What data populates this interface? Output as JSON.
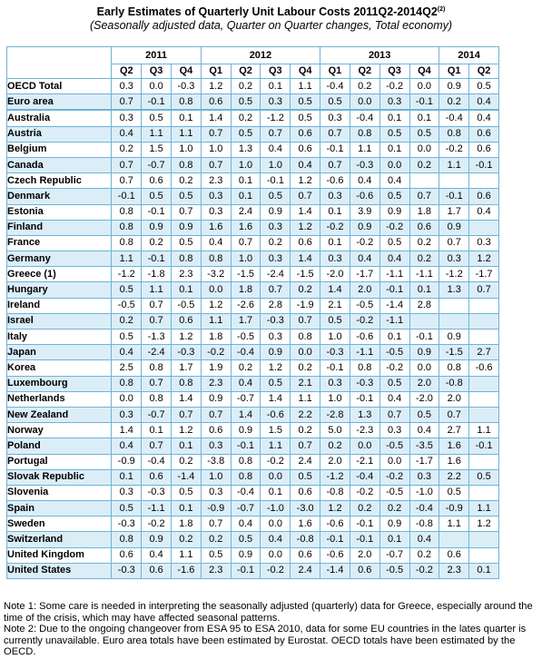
{
  "title": "Early Estimates of Quarterly Unit Labour Costs 2011Q2-2014Q2",
  "title_superscript": "(2)",
  "subtitle": "(Seasonally adjusted data, Quarter on Quarter changes, Total economy)",
  "years": [
    "2011",
    "2012",
    "2013",
    "2014"
  ],
  "quarters": [
    "Q2",
    "Q3",
    "Q4",
    "Q1",
    "Q2",
    "Q3",
    "Q4",
    "Q1",
    "Q2",
    "Q3",
    "Q4",
    "Q1",
    "Q2"
  ],
  "rows": [
    {
      "name": "OECD Total",
      "values": [
        "0.3",
        "0.0",
        "-0.3",
        "1.2",
        "0.2",
        "0.1",
        "1.1",
        "-0.4",
        "0.2",
        "-0.2",
        "0.0",
        "0.9",
        "0.5"
      ]
    },
    {
      "name": "Euro area",
      "values": [
        "0.7",
        "-0.1",
        "0.8",
        "0.6",
        "0.5",
        "0.3",
        "0.5",
        "0.5",
        "0.0",
        "0.3",
        "-0.1",
        "0.2",
        "0.4"
      ]
    },
    {
      "name": "Australia",
      "values": [
        "0.3",
        "0.5",
        "0.1",
        "1.4",
        "0.2",
        "-1.2",
        "0.5",
        "0.3",
        "-0.4",
        "0.1",
        "0.1",
        "-0.4",
        "0.4"
      ]
    },
    {
      "name": "Austria",
      "values": [
        "0.4",
        "1.1",
        "1.1",
        "0.7",
        "0.5",
        "0.7",
        "0.6",
        "0.7",
        "0.8",
        "0.5",
        "0.5",
        "0.8",
        "0.6"
      ]
    },
    {
      "name": "Belgium",
      "values": [
        "0.2",
        "1.5",
        "1.0",
        "1.0",
        "1.3",
        "0.4",
        "0.6",
        "-0.1",
        "1.1",
        "0.1",
        "0.0",
        "-0.2",
        "0.6"
      ]
    },
    {
      "name": "Canada",
      "values": [
        "0.7",
        "-0.7",
        "0.8",
        "0.7",
        "1.0",
        "1.0",
        "0.4",
        "0.7",
        "-0.3",
        "0.0",
        "0.2",
        "1.1",
        "-0.1"
      ]
    },
    {
      "name": "Czech Republic",
      "values": [
        "0.7",
        "0.6",
        "0.2",
        "2.3",
        "0.1",
        "-0.1",
        "1.2",
        "-0.6",
        "0.4",
        "0.4",
        "",
        "",
        ""
      ]
    },
    {
      "name": "Denmark",
      "values": [
        "-0.1",
        "0.5",
        "0.5",
        "0.3",
        "0.1",
        "0.5",
        "0.7",
        "0.3",
        "-0.6",
        "0.5",
        "0.7",
        "-0.1",
        "0.6"
      ]
    },
    {
      "name": "Estonia",
      "values": [
        "0.8",
        "-0.1",
        "0.7",
        "0.3",
        "2.4",
        "0.9",
        "1.4",
        "0.1",
        "3.9",
        "0.9",
        "1.8",
        "1.7",
        "0.4"
      ]
    },
    {
      "name": "Finland",
      "values": [
        "0.8",
        "0.9",
        "0.9",
        "1.6",
        "1.6",
        "0.3",
        "1.2",
        "-0.2",
        "0.9",
        "-0.2",
        "0.6",
        "0.9",
        ""
      ]
    },
    {
      "name": "France",
      "values": [
        "0.8",
        "0.2",
        "0.5",
        "0.4",
        "0.7",
        "0.2",
        "0.6",
        "0.1",
        "-0.2",
        "0.5",
        "0.2",
        "0.7",
        "0.3"
      ]
    },
    {
      "name": "Germany",
      "values": [
        "1.1",
        "-0.1",
        "0.8",
        "0.8",
        "1.0",
        "0.3",
        "1.4",
        "0.3",
        "0.4",
        "0.4",
        "0.2",
        "0.3",
        "1.2"
      ]
    },
    {
      "name": "Greece (1)",
      "values": [
        "-1.2",
        "-1.8",
        "2.3",
        "-3.2",
        "-1.5",
        "-2.4",
        "-1.5",
        "-2.0",
        "-1.7",
        "-1.1",
        "-1.1",
        "-1.2",
        "-1.7"
      ]
    },
    {
      "name": "Hungary",
      "values": [
        "0.5",
        "1.1",
        "0.1",
        "0.0",
        "1.8",
        "0.7",
        "0.2",
        "1.4",
        "2.0",
        "-0.1",
        "0.1",
        "1.3",
        "0.7"
      ]
    },
    {
      "name": "Ireland",
      "values": [
        "-0.5",
        "0.7",
        "-0.5",
        "1.2",
        "-2.6",
        "2.8",
        "-1.9",
        "2.1",
        "-0.5",
        "-1.4",
        "2.8",
        "",
        ""
      ]
    },
    {
      "name": "Israel",
      "values": [
        "0.2",
        "0.7",
        "0.6",
        "1.1",
        "1.7",
        "-0.3",
        "0.7",
        "0.5",
        "-0.2",
        "-1.1",
        "",
        "",
        ""
      ]
    },
    {
      "name": "Italy",
      "values": [
        "0.5",
        "-1.3",
        "1.2",
        "1.8",
        "-0.5",
        "0.3",
        "0.8",
        "1.0",
        "-0.6",
        "0.1",
        "-0.1",
        "0.9",
        ""
      ]
    },
    {
      "name": "Japan",
      "values": [
        "0.4",
        "-2.4",
        "-0.3",
        "-0.2",
        "-0.4",
        "0.9",
        "0.0",
        "-0.3",
        "-1.1",
        "-0.5",
        "0.9",
        "-1.5",
        "2.7"
      ]
    },
    {
      "name": "Korea",
      "values": [
        "2.5",
        "0.8",
        "1.7",
        "1.9",
        "0.2",
        "1.2",
        "0.2",
        "-0.1",
        "0.8",
        "-0.2",
        "0.0",
        "0.8",
        "-0.6"
      ]
    },
    {
      "name": "Luxembourg",
      "values": [
        "0.8",
        "0.7",
        "0.8",
        "2.3",
        "0.4",
        "0.5",
        "2.1",
        "0.3",
        "-0.3",
        "0.5",
        "2.0",
        "-0.8",
        ""
      ]
    },
    {
      "name": "Netherlands",
      "values": [
        "0.0",
        "0.8",
        "1.4",
        "0.9",
        "-0.7",
        "1.4",
        "1.1",
        "1.0",
        "-0.1",
        "0.4",
        "-2.0",
        "2.0",
        ""
      ]
    },
    {
      "name": "New Zealand",
      "values": [
        "0.3",
        "-0.7",
        "0.7",
        "0.7",
        "1.4",
        "-0.6",
        "2.2",
        "-2.8",
        "1.3",
        "0.7",
        "0.5",
        "0.7",
        ""
      ]
    },
    {
      "name": "Norway",
      "values": [
        "1.4",
        "0.1",
        "1.2",
        "0.6",
        "0.9",
        "1.5",
        "0.2",
        "5.0",
        "-2.3",
        "0.3",
        "0.4",
        "2.7",
        "1.1"
      ]
    },
    {
      "name": "Poland",
      "values": [
        "0.4",
        "0.7",
        "0.1",
        "0.3",
        "-0.1",
        "1.1",
        "0.7",
        "0.2",
        "0.0",
        "-0.5",
        "-3.5",
        "1.6",
        "-0.1"
      ]
    },
    {
      "name": "Portugal",
      "values": [
        "-0.9",
        "-0.4",
        "0.2",
        "-3.8",
        "0.8",
        "-0.2",
        "2.4",
        "2.0",
        "-2.1",
        "0.0",
        "-1.7",
        "1.6",
        ""
      ]
    },
    {
      "name": "Slovak Republic",
      "values": [
        "0.1",
        "0.6",
        "-1.4",
        "1.0",
        "0.8",
        "0.0",
        "0.5",
        "-1.2",
        "-0.4",
        "-0.2",
        "0.3",
        "2.2",
        "0.5"
      ]
    },
    {
      "name": "Slovenia",
      "values": [
        "0.3",
        "-0.3",
        "0.5",
        "0.3",
        "-0.4",
        "0.1",
        "0.6",
        "-0.8",
        "-0.2",
        "-0.5",
        "-1.0",
        "0.5",
        ""
      ]
    },
    {
      "name": "Spain",
      "values": [
        "0.5",
        "-1.1",
        "0.1",
        "-0.9",
        "-0.7",
        "-1.0",
        "-3.0",
        "1.2",
        "0.2",
        "0.2",
        "-0.4",
        "-0.9",
        "1.1"
      ]
    },
    {
      "name": "Sweden",
      "values": [
        "-0.3",
        "-0.2",
        "1.8",
        "0.7",
        "0.4",
        "0.0",
        "1.6",
        "-0.6",
        "-0.1",
        "0.9",
        "-0.8",
        "1.1",
        "1.2"
      ]
    },
    {
      "name": "Switzerland",
      "values": [
        "0.8",
        "0.9",
        "0.2",
        "0.2",
        "0.5",
        "0.4",
        "-0.8",
        "-0.1",
        "-0.1",
        "0.1",
        "0.4",
        "",
        ""
      ]
    },
    {
      "name": "United Kingdom",
      "values": [
        "0.6",
        "0.4",
        "1.1",
        "0.5",
        "0.9",
        "0.0",
        "0.6",
        "-0.6",
        "2.0",
        "-0.7",
        "0.2",
        "0.6",
        ""
      ]
    },
    {
      "name": "United States",
      "values": [
        "-0.3",
        "0.6",
        "-1.6",
        "2.3",
        "-0.1",
        "-0.2",
        "2.4",
        "-1.4",
        "0.6",
        "-0.5",
        "-0.2",
        "2.3",
        "0.1"
      ]
    }
  ],
  "notes": [
    "Note 1: Some care is needed in interpreting the seasonally adjusted (quarterly) data for Greece, especially around the time of the crisis, which may have affected seasonal patterns.",
    "Note 2: Due to the ongoing changeover from ESA 95 to ESA 2010, data for some EU countries in the lates quarter is currently unavailable. Euro area totals have been estimated by Eurostat. OECD totals have been estimated by the OECD."
  ]
}
